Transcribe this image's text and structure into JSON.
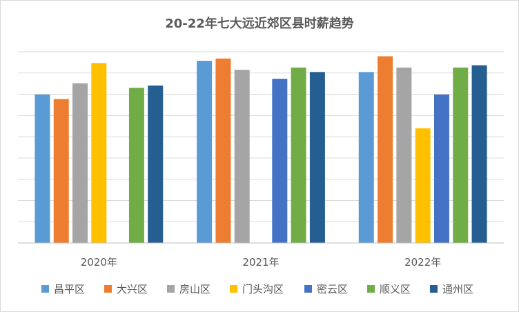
{
  "chart_data": {
    "type": "bar",
    "title": "20-22年七大远近郊区县时薪趋势",
    "xlabel": "",
    "ylabel": "",
    "grid": true,
    "y_axis_labels_shown": false,
    "legend_position": "bottom",
    "ylim": [
      0,
      8.5
    ],
    "categories": [
      "2020年",
      "2021年",
      "2022年"
    ],
    "series": [
      {
        "name": "昌平区",
        "color": "#5B9BD5",
        "values": [
          6.6,
          8.1,
          7.6
        ]
      },
      {
        "name": "大兴区",
        "color": "#ED7D31",
        "values": [
          6.4,
          8.2,
          8.3
        ]
      },
      {
        "name": "房山区",
        "color": "#A5A5A5",
        "values": [
          7.1,
          7.7,
          7.8
        ]
      },
      {
        "name": "门头沟区",
        "color": "#FFC000",
        "values": [
          8.0,
          null,
          5.1
        ]
      },
      {
        "name": "密云区",
        "color": "#4472C4",
        "values": [
          null,
          7.3,
          6.6
        ]
      },
      {
        "name": "顺义区",
        "color": "#70AD47",
        "values": [
          6.9,
          7.8,
          7.8
        ]
      },
      {
        "name": "通州区",
        "color": "#255E91",
        "values": [
          7.0,
          7.6,
          7.9
        ]
      }
    ]
  }
}
